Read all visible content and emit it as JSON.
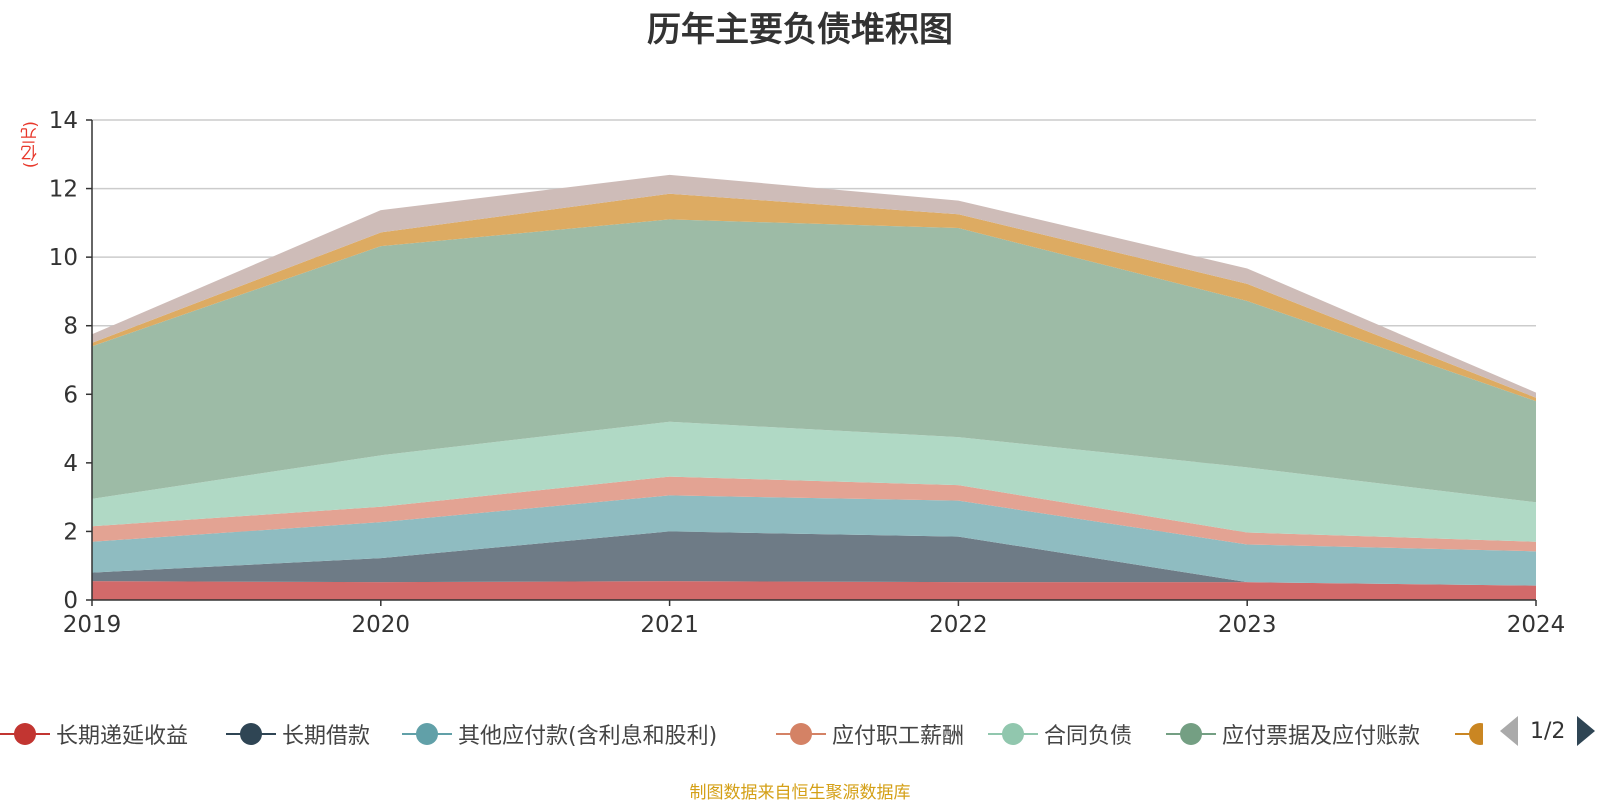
{
  "chart_data": {
    "type": "area",
    "stacked": true,
    "title": "历年主要负债堆积图",
    "ylabel": "(亿元)",
    "xlabel": "",
    "ylim": [
      0,
      14
    ],
    "yticks": [
      0,
      2,
      4,
      6,
      8,
      10,
      12,
      14
    ],
    "categories": [
      "2019",
      "2020",
      "2021",
      "2022",
      "2023",
      "2024"
    ],
    "series": [
      {
        "name": "长期递延收益",
        "color": "#d26a6a",
        "marker": "#c23531",
        "values": [
          0.55,
          0.52,
          0.55,
          0.52,
          0.52,
          0.42
        ]
      },
      {
        "name": "长期借款",
        "color": "#6e7b86",
        "marker": "#2f4554",
        "values": [
          0.25,
          0.7,
          1.45,
          1.33,
          0.0,
          0.0
        ]
      },
      {
        "name": "其他应付款(含利息和股利)",
        "color": "#8fbcc1",
        "marker": "#61a0a8",
        "values": [
          0.9,
          1.05,
          1.05,
          1.05,
          1.1,
          1.0
        ]
      },
      {
        "name": "应付职工薪酬",
        "color": "#e3a393",
        "marker": "#d48265",
        "values": [
          0.45,
          0.45,
          0.55,
          0.45,
          0.35,
          0.28
        ]
      },
      {
        "name": "合同负债",
        "color": "#b0d9c5",
        "marker": "#91c7ae",
        "values": [
          0.8,
          1.5,
          1.6,
          1.4,
          1.9,
          1.15
        ]
      },
      {
        "name": "应付票据及应付账款",
        "color": "#9dbba6",
        "marker": "#749f83",
        "values": [
          4.45,
          6.1,
          5.9,
          6.1,
          4.85,
          2.95
        ]
      },
      {
        "name": "",
        "color": "#ddab62",
        "marker": "#ca8622",
        "values": [
          0.1,
          0.4,
          0.75,
          0.4,
          0.5,
          0.1
        ]
      },
      {
        "name": "",
        "color": "#cebcb8",
        "marker": "#bda29a",
        "values": [
          0.25,
          0.65,
          0.55,
          0.4,
          0.45,
          0.15
        ]
      }
    ],
    "legend": {
      "position": "bottom",
      "page": "1/2"
    },
    "source": "制图数据来自恒生聚源数据库"
  }
}
